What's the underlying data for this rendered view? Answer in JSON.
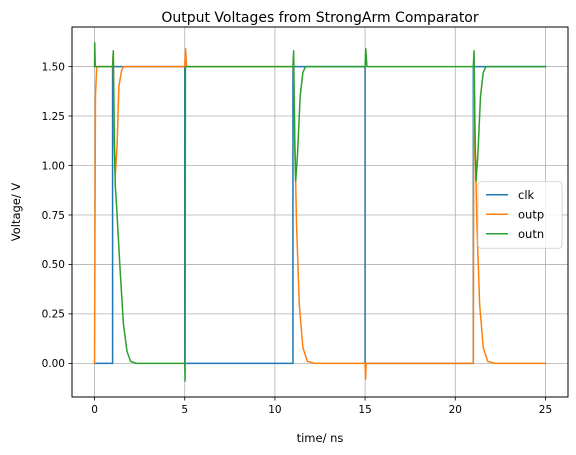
{
  "chart_data": {
    "type": "line",
    "title": "Output Voltages from StrongArm Comparator",
    "xlabel": "time/ ns",
    "ylabel": "Voltage/ V",
    "xlim": [
      -1.25,
      26.25
    ],
    "ylim": [
      -0.17,
      1.7
    ],
    "xticks": [
      0,
      5,
      10,
      15,
      20,
      25
    ],
    "xtick_labels": [
      "0",
      "5",
      "10",
      "15",
      "20",
      "25"
    ],
    "yticks": [
      0.0,
      0.25,
      0.5,
      0.75,
      1.0,
      1.25,
      1.5
    ],
    "ytick_labels": [
      "0.00",
      "0.25",
      "0.50",
      "0.75",
      "1.00",
      "1.25",
      "1.50"
    ],
    "grid": true,
    "legend_position": "center-right",
    "series": [
      {
        "name": "clk",
        "color": "#1f77b4",
        "x": [
          0,
          1.0,
          1.0,
          1.06,
          1.12,
          5.0,
          5.0,
          5.06,
          5.12,
          11.0,
          11.0,
          11.06,
          11.12,
          15.0,
          15.0,
          15.06,
          15.12,
          21.0,
          21.0,
          21.06,
          21.12,
          25.0
        ],
        "y": [
          0,
          0,
          1.5,
          1.5,
          1.5,
          1.5,
          0,
          0,
          0,
          0,
          1.5,
          1.5,
          1.5,
          1.5,
          0,
          0,
          0,
          0,
          1.5,
          1.5,
          1.5,
          1.5
        ]
      },
      {
        "name": "outp",
        "color": "#ff7f0e",
        "x": [
          0,
          0.05,
          0.12,
          0.2,
          1.0,
          1.04,
          1.08,
          1.15,
          1.25,
          1.35,
          1.5,
          1.6,
          1.8,
          2.2,
          5.0,
          5.05,
          5.1,
          5.15,
          11.0,
          11.03,
          11.1,
          11.2,
          11.35,
          11.55,
          11.8,
          12.2,
          15.0,
          15.03,
          15.06,
          15.12,
          21.0,
          21.03,
          21.1,
          21.2,
          21.35,
          21.55,
          21.8,
          22.2,
          25.0
        ],
        "y": [
          0,
          1.35,
          1.5,
          1.5,
          1.5,
          1.57,
          1.2,
          0.95,
          1.1,
          1.4,
          1.48,
          1.5,
          1.5,
          1.5,
          1.5,
          1.59,
          1.5,
          1.5,
          1.5,
          1.5,
          1.15,
          0.7,
          0.3,
          0.08,
          0.01,
          0,
          0,
          -0.08,
          0,
          0,
          0,
          1.5,
          1.15,
          0.7,
          0.3,
          0.08,
          0.01,
          0,
          0
        ]
      },
      {
        "name": "outn",
        "color": "#2ca02c",
        "x": [
          0,
          0.01,
          0.04,
          1.0,
          1.04,
          1.1,
          1.15,
          1.25,
          1.4,
          1.6,
          1.8,
          2.0,
          2.3,
          2.6,
          5.0,
          5.02,
          5.04,
          5.08,
          11.0,
          11.04,
          11.1,
          11.15,
          11.25,
          11.4,
          11.55,
          11.7,
          11.9,
          15.0,
          15.04,
          15.1,
          21.0,
          21.04,
          21.1,
          21.15,
          21.25,
          21.4,
          21.55,
          21.7,
          21.9,
          25.0
        ],
        "y": [
          1.5,
          1.62,
          1.5,
          1.5,
          1.58,
          1.1,
          0.9,
          0.75,
          0.5,
          0.2,
          0.06,
          0.01,
          0,
          0,
          0,
          -0.09,
          1.5,
          1.5,
          1.5,
          1.58,
          1.1,
          0.92,
          1.05,
          1.35,
          1.47,
          1.5,
          1.5,
          1.5,
          1.59,
          1.5,
          1.5,
          1.58,
          1.1,
          0.92,
          1.05,
          1.35,
          1.47,
          1.5,
          1.5,
          1.5
        ]
      }
    ]
  }
}
